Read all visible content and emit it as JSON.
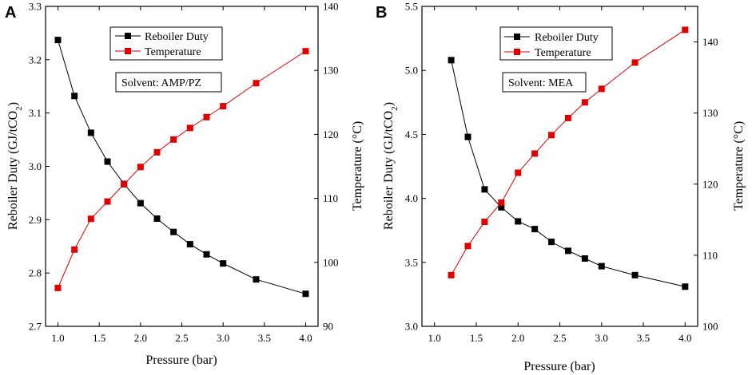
{
  "colors": {
    "reboiler": "#000000",
    "temperature": "#e00000"
  },
  "chart_data": [
    {
      "panel": "A",
      "type": "line",
      "xlabel": "Pressure (bar)",
      "ylabel_left": "Reboiler Duty (GJ/tCO2)",
      "ylabel_left_main": "Reboiler Duty (GJ/tCO",
      "ylabel_left_sub": "2",
      "ylabel_left_end": ")",
      "ylabel_right": "Temperature (°C)",
      "xlim": [
        0.85,
        4.15
      ],
      "ylim_left": [
        2.7,
        3.3
      ],
      "ylim_right": [
        90,
        140
      ],
      "x_ticks": [
        1.0,
        1.5,
        2.0,
        2.5,
        3.0,
        3.5,
        4.0
      ],
      "x_tick_labels": [
        "1.0",
        "1.5",
        "2.0",
        "2.5",
        "3.0",
        "3.5",
        "4.0"
      ],
      "y_left_ticks": [
        2.7,
        2.8,
        2.9,
        3.0,
        3.1,
        3.2,
        3.3
      ],
      "y_left_tick_labels": [
        "2.7",
        "2.8",
        "2.9",
        "3.0",
        "3.1",
        "3.2",
        "3.3"
      ],
      "y_right_ticks": [
        90,
        100,
        110,
        120,
        130,
        140
      ],
      "y_right_tick_labels": [
        "90",
        "100",
        "110",
        "120",
        "130",
        "140"
      ],
      "legend": [
        "Reboiler Duty",
        "Temperature"
      ],
      "annotation": "Solvent: AMP/PZ",
      "series": [
        {
          "name": "Reboiler Duty",
          "axis": "left",
          "x": [
            1.0,
            1.2,
            1.4,
            1.6,
            1.8,
            2.0,
            2.2,
            2.4,
            2.6,
            2.8,
            3.0,
            3.4,
            4.0
          ],
          "values": [
            3.237,
            3.132,
            3.063,
            3.009,
            2.967,
            2.931,
            2.902,
            2.877,
            2.854,
            2.835,
            2.818,
            2.788,
            2.761
          ]
        },
        {
          "name": "Temperature",
          "axis": "right",
          "x": [
            1.0,
            1.2,
            1.4,
            1.6,
            1.8,
            2.0,
            2.2,
            2.4,
            2.6,
            2.8,
            3.0,
            3.4,
            4.0
          ],
          "values": [
            96.0,
            102.0,
            106.8,
            109.5,
            112.2,
            114.9,
            117.2,
            119.2,
            121.0,
            122.7,
            124.4,
            128.0,
            133.0
          ]
        }
      ]
    },
    {
      "panel": "B",
      "type": "line",
      "xlabel": "Pressure (bar)",
      "ylabel_left": "Reboiler Duty (GJ/tCO2)",
      "ylabel_left_main": "Reboiler Duty (GJ/tCO",
      "ylabel_left_sub": "2",
      "ylabel_left_end": ")",
      "ylabel_right": "Temperature (°C)",
      "xlim": [
        0.85,
        4.15
      ],
      "ylim_left": [
        3.0,
        5.5
      ],
      "ylim_right": [
        100,
        145
      ],
      "x_ticks": [
        1.0,
        1.5,
        2.0,
        2.5,
        3.0,
        3.5,
        4.0
      ],
      "x_tick_labels": [
        "1.0",
        "1.5",
        "2.0",
        "2.5",
        "3.0",
        "3.5",
        "4.0"
      ],
      "y_left_ticks": [
        3.0,
        3.5,
        4.0,
        4.5,
        5.0,
        5.5
      ],
      "y_left_tick_labels": [
        "3.0",
        "3.5",
        "4.0",
        "4.5",
        "5.0",
        "5.5"
      ],
      "y_right_ticks": [
        100,
        110,
        120,
        130,
        140
      ],
      "y_right_tick_labels": [
        "100",
        "110",
        "120",
        "130",
        "140"
      ],
      "legend": [
        "Reboiler Duty",
        "Temperature"
      ],
      "annotation": "Solvent: MEA",
      "series": [
        {
          "name": "Reboiler Duty",
          "axis": "left",
          "x": [
            1.2,
            1.4,
            1.6,
            1.8,
            2.0,
            2.2,
            2.4,
            2.6,
            2.8,
            3.0,
            3.4,
            4.0
          ],
          "values": [
            5.08,
            4.48,
            4.07,
            3.93,
            3.82,
            3.76,
            3.66,
            3.59,
            3.53,
            3.47,
            3.4,
            3.31
          ]
        },
        {
          "name": "Temperature",
          "axis": "right",
          "x": [
            1.2,
            1.4,
            1.6,
            1.8,
            2.0,
            2.2,
            2.4,
            2.6,
            2.8,
            3.0,
            3.4,
            4.0
          ],
          "values": [
            107.2,
            111.3,
            114.7,
            117.4,
            121.6,
            124.3,
            126.9,
            129.3,
            131.5,
            133.4,
            137.1,
            141.7
          ]
        }
      ]
    }
  ]
}
